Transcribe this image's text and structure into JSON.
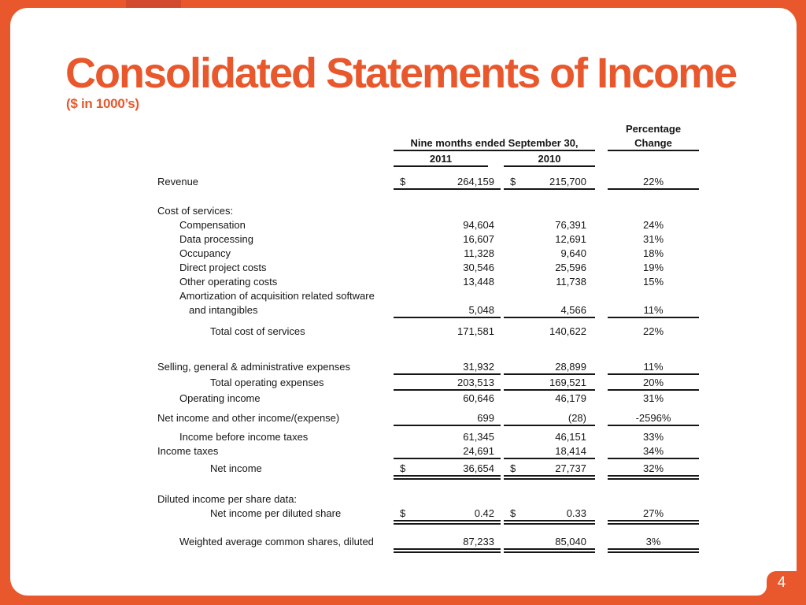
{
  "title": "Consolidated Statements of Income",
  "subtitle": "($ in 1000’s)",
  "page": {
    "number": "4"
  },
  "colors": {
    "accent": "#E8582C",
    "accent_dark": "#D24B2E",
    "ink": "#161616"
  },
  "table": {
    "period_header": "Nine months ended September 30,",
    "pct_header_line1": "Percentage",
    "pct_header_line2": "Change",
    "years": [
      "2011",
      "2010"
    ],
    "rows": [
      {
        "label": "Revenue",
        "indent": 0,
        "dollar": true,
        "v2011": "264,159",
        "v2010": "215,700",
        "pct": "22%",
        "rule": "single"
      },
      {
        "label": "Cost of services:",
        "indent": 0,
        "dollar": false,
        "v2011": "",
        "v2010": "",
        "pct": "",
        "rule": "none"
      },
      {
        "label": "Compensation",
        "indent": 1,
        "dollar": false,
        "v2011": "94,604",
        "v2010": "76,391",
        "pct": "24%",
        "rule": "none"
      },
      {
        "label": "Data processing",
        "indent": 1,
        "dollar": false,
        "v2011": "16,607",
        "v2010": "12,691",
        "pct": "31%",
        "rule": "none"
      },
      {
        "label": "Occupancy",
        "indent": 1,
        "dollar": false,
        "v2011": "11,328",
        "v2010": "9,640",
        "pct": "18%",
        "rule": "none"
      },
      {
        "label": "Direct project costs",
        "indent": 1,
        "dollar": false,
        "v2011": "30,546",
        "v2010": "25,596",
        "pct": "19%",
        "rule": "none"
      },
      {
        "label": "Other operating costs",
        "indent": 1,
        "dollar": false,
        "v2011": "13,448",
        "v2010": "11,738",
        "pct": "15%",
        "rule": "none"
      },
      {
        "label": "Amortization of acquisition related software",
        "indent": 1,
        "dollar": false,
        "v2011": "",
        "v2010": "",
        "pct": "",
        "rule": "none"
      },
      {
        "label": "and intangibles",
        "indent": 2,
        "dollar": false,
        "v2011": "5,048",
        "v2010": "4,566",
        "pct": "11%",
        "rule": "single"
      },
      {
        "label": "Total cost of services",
        "indent": 3,
        "dollar": false,
        "v2011": "171,581",
        "v2010": "140,622",
        "pct": "22%",
        "rule": "none"
      },
      {
        "label": "Selling, general & administrative expenses",
        "indent": 0,
        "dollar": false,
        "v2011": "31,932",
        "v2010": "28,899",
        "pct": "11%",
        "rule": "single"
      },
      {
        "label": "Total operating expenses",
        "indent": 3,
        "dollar": false,
        "v2011": "203,513",
        "v2010": "169,521",
        "pct": "20%",
        "rule": "single"
      },
      {
        "label": "Operating income",
        "indent": 1,
        "dollar": false,
        "v2011": "60,646",
        "v2010": "46,179",
        "pct": "31%",
        "rule": "none"
      },
      {
        "label": "Net income and other income/(expense)",
        "indent": 0,
        "dollar": false,
        "v2011": "699",
        "v2010": "(28)",
        "pct": "-2596%",
        "rule": "single"
      },
      {
        "label": "Income before income taxes",
        "indent": 1,
        "dollar": false,
        "v2011": "61,345",
        "v2010": "46,151",
        "pct": "33%",
        "rule": "none"
      },
      {
        "label": "Income taxes",
        "indent": 0,
        "dollar": false,
        "v2011": "24,691",
        "v2010": "18,414",
        "pct": "34%",
        "rule": "single"
      },
      {
        "label": "Net income",
        "indent": 3,
        "dollar": true,
        "v2011": "36,654",
        "v2010": "27,737",
        "pct": "32%",
        "rule": "double"
      },
      {
        "label": "Diluted income per share data:",
        "indent": 0,
        "dollar": false,
        "v2011": "",
        "v2010": "",
        "pct": "",
        "rule": "none"
      },
      {
        "label": "Net income per diluted share",
        "indent": 3,
        "dollar": true,
        "v2011": "0.42",
        "v2010": "0.33",
        "pct": "27%",
        "rule": "double"
      },
      {
        "label": "Weighted average common shares, diluted",
        "indent": 1,
        "dollar": false,
        "v2011": "87,233",
        "v2010": "85,040",
        "pct": "3%",
        "rule": "double"
      }
    ]
  }
}
